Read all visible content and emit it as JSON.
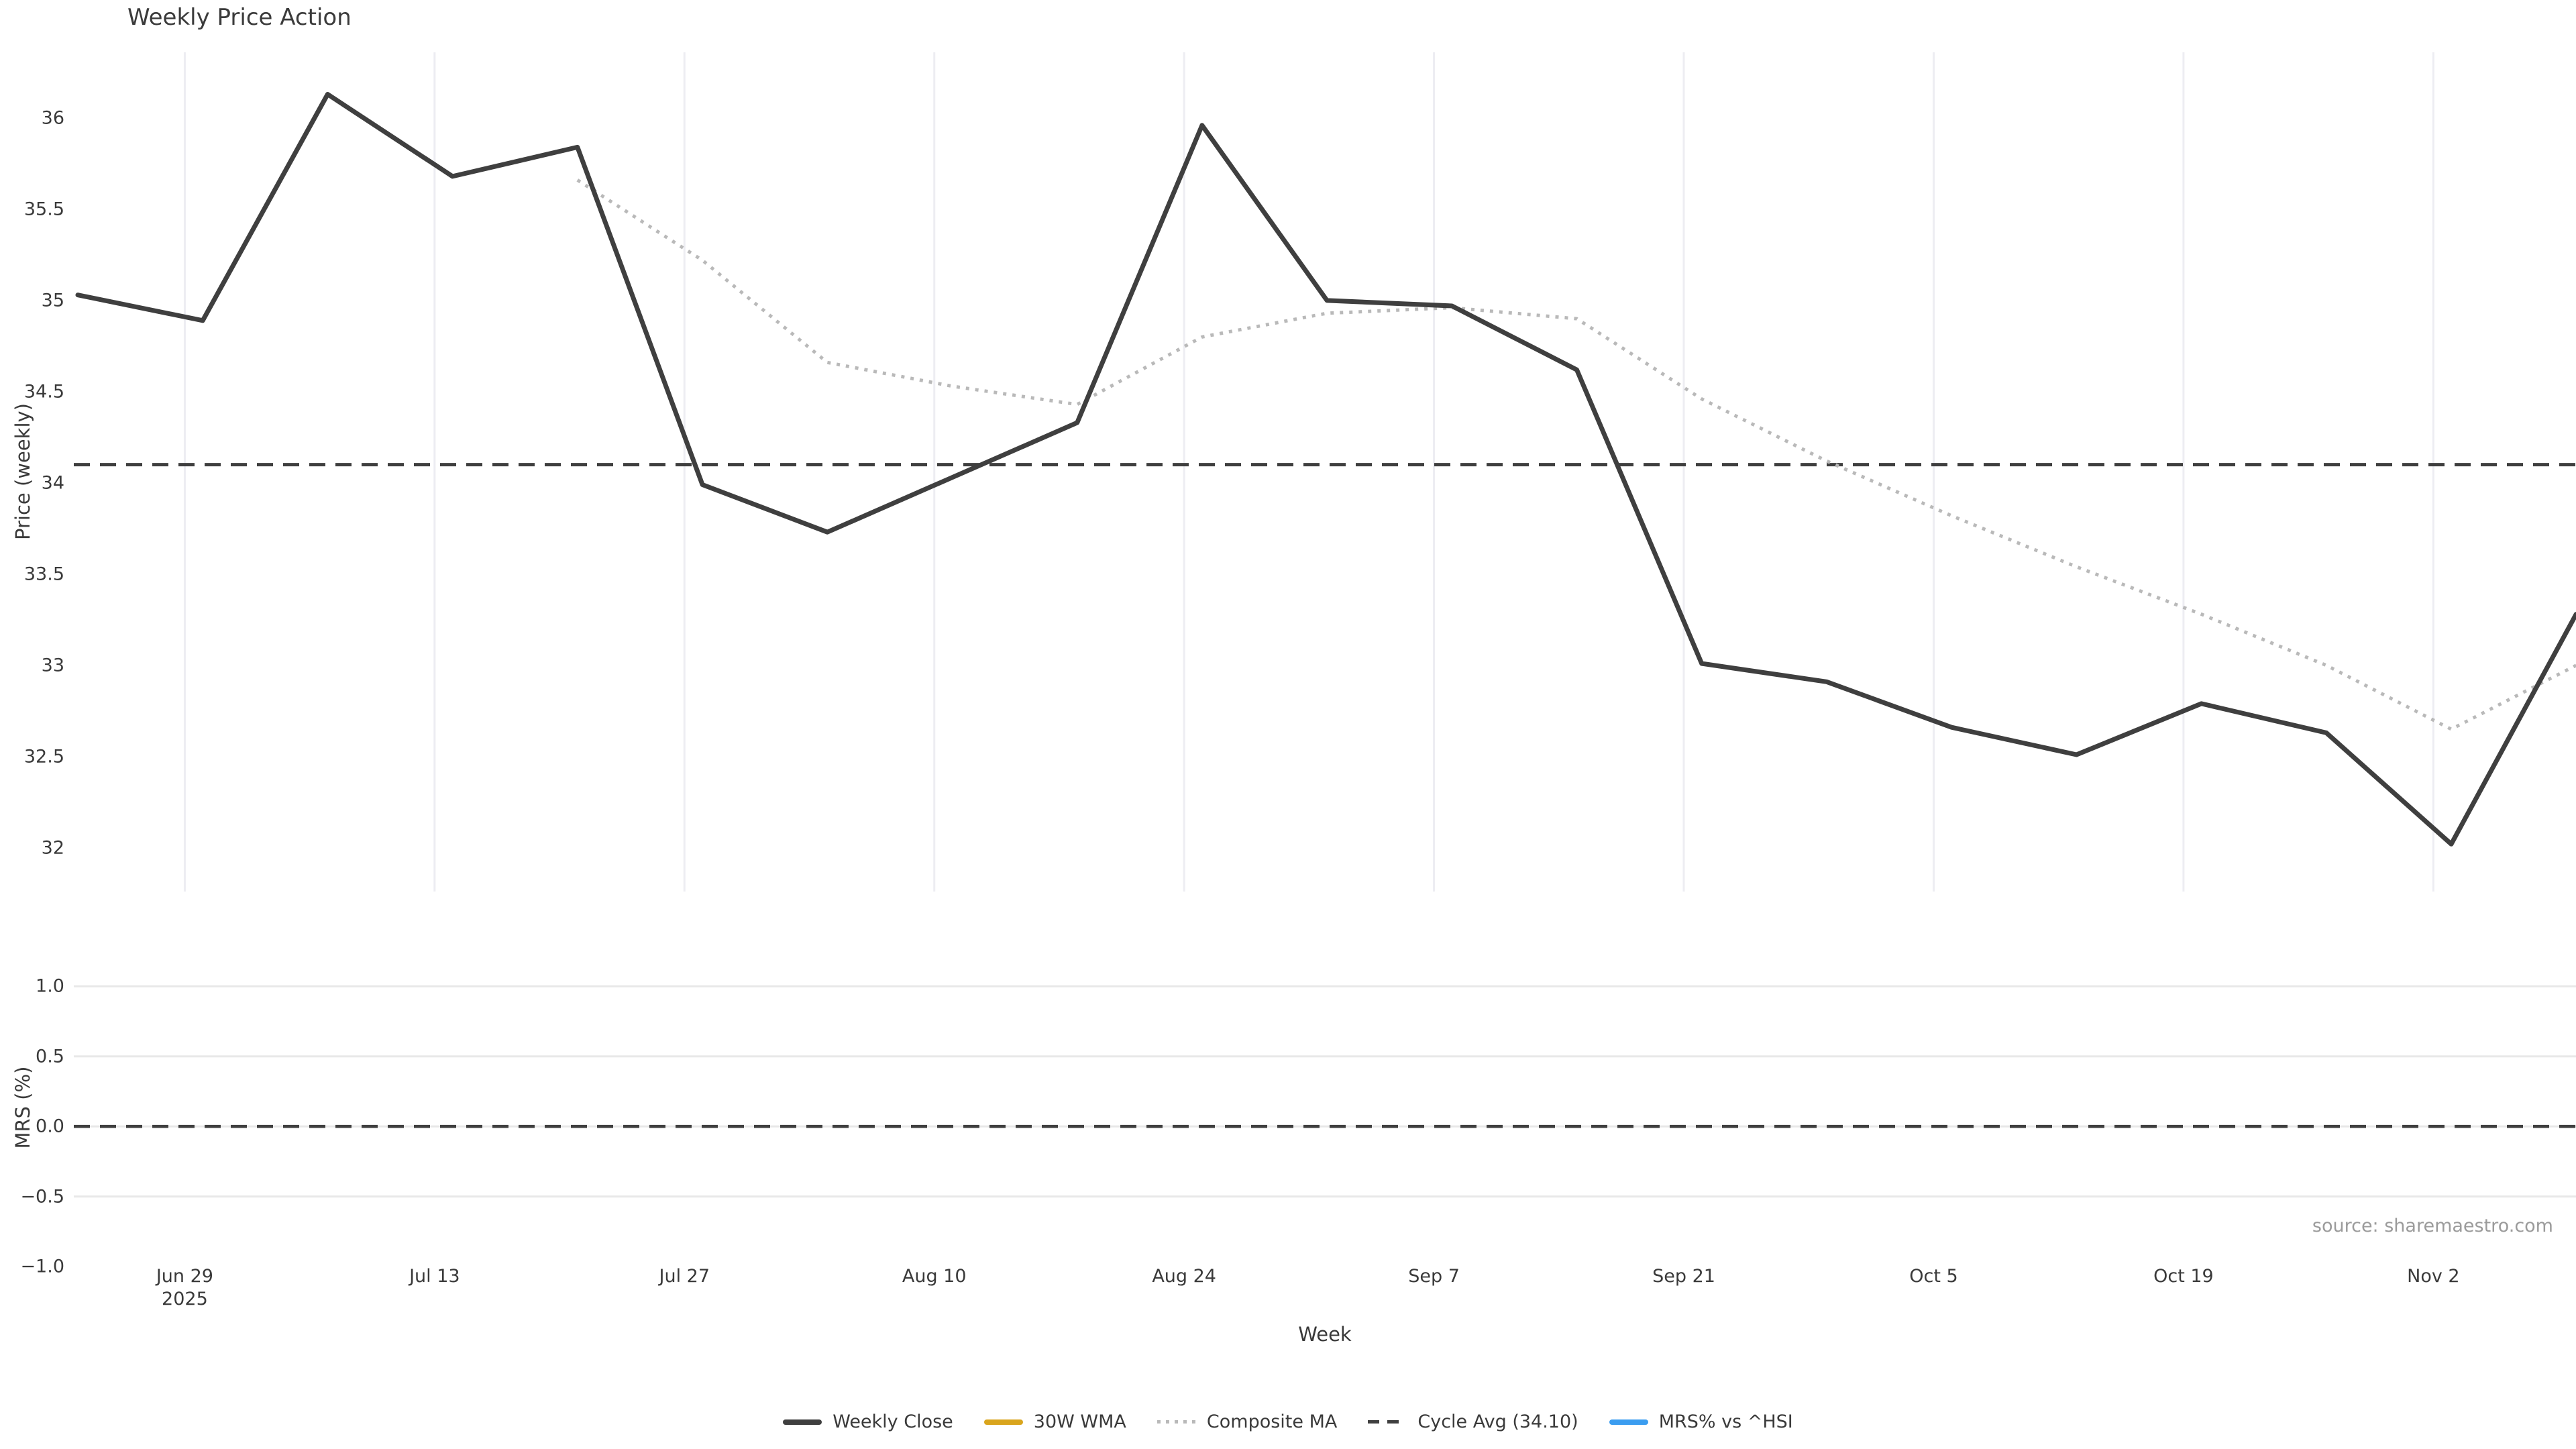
{
  "title": "Weekly Price Action",
  "source_note": "source: sharemaestro.com",
  "axes": {
    "price_label": "Price (weekly)",
    "mrs_label": "MRS (%)",
    "x_label": "Week",
    "price_ticks": [
      {
        "value": 36,
        "label": "36"
      },
      {
        "value": 35.5,
        "label": "35.5"
      },
      {
        "value": 35,
        "label": "35"
      },
      {
        "value": 34.5,
        "label": "34.5"
      },
      {
        "value": 34,
        "label": "34"
      },
      {
        "value": 33.5,
        "label": "33.5"
      },
      {
        "value": 33,
        "label": "33"
      },
      {
        "value": 32.5,
        "label": "32.5"
      },
      {
        "value": 32,
        "label": "32"
      }
    ],
    "mrs_ticks": [
      {
        "value": 1.0,
        "label": "1.0"
      },
      {
        "value": 0.5,
        "label": "0.5"
      },
      {
        "value": 0.0,
        "label": "0.0"
      },
      {
        "value": -0.5,
        "label": "−0.5"
      },
      {
        "value": -1.0,
        "label": "−1.0"
      }
    ],
    "x_ticks": [
      {
        "label": "Jun 29",
        "sub": "2025"
      },
      {
        "label": "Jul 13"
      },
      {
        "label": "Jul 27"
      },
      {
        "label": "Aug 10"
      },
      {
        "label": "Aug 24"
      },
      {
        "label": "Sep 7"
      },
      {
        "label": "Sep 21"
      },
      {
        "label": "Oct 5"
      },
      {
        "label": "Oct 19"
      },
      {
        "label": "Nov 2"
      }
    ]
  },
  "legend": {
    "items": [
      {
        "label": "Weekly Close",
        "style": "solid",
        "color": "#3f3f3f"
      },
      {
        "label": "30W WMA",
        "style": "solid",
        "color": "#d9a51d"
      },
      {
        "label": "Composite MA",
        "style": "dotted",
        "color": "#b9b9b9"
      },
      {
        "label": "Cycle Avg (34.10)",
        "style": "dashed",
        "color": "#3f3f3f"
      },
      {
        "label": "MRS% vs ^HSI",
        "style": "solid",
        "color": "#3b9df0"
      }
    ]
  },
  "colors": {
    "background": "#ffffff",
    "text": "#3a3a3a",
    "muted_text": "#9b9b9b",
    "grid_vertical": "#ededf2",
    "grid_horizontal": "#e8e8e8",
    "weekly_close": "#3f3f3f",
    "wma_30w": "#d9a51d",
    "composite_ma": "#b9b9b9",
    "cycle_avg": "#3f3f3f",
    "mrs_line": "#3b9df0"
  },
  "chart_data": {
    "type": "line",
    "title": "Weekly Price Action",
    "xlabel": "Week",
    "x": [
      "Jun 22",
      "Jun 29",
      "Jul 6",
      "Jul 13",
      "Jul 20",
      "Jul 27",
      "Aug 3",
      "Aug 10",
      "Aug 17",
      "Aug 24",
      "Aug 31",
      "Sep 7",
      "Sep 14",
      "Sep 21",
      "Sep 28",
      "Oct 5",
      "Oct 12",
      "Oct 19",
      "Oct 26",
      "Nov 2",
      "Nov 9"
    ],
    "x_tick_labels": [
      "Jun 29 2025",
      "Jul 13",
      "Jul 27",
      "Aug 10",
      "Aug 24",
      "Sep 7",
      "Sep 21",
      "Oct 5",
      "Oct 19",
      "Nov 2"
    ],
    "panels": [
      {
        "ylabel": "Price (weekly)",
        "ylim": [
          31.76,
          36.36
        ],
        "yticks": [
          32,
          32.5,
          33,
          33.5,
          34,
          34.5,
          35,
          35.5,
          36
        ],
        "grid": "vertical",
        "series": [
          {
            "name": "Weekly Close",
            "style": "solid",
            "color": "#3f3f3f",
            "values": [
              35.03,
              34.89,
              36.13,
              35.68,
              35.84,
              33.99,
              33.73,
              34.03,
              34.33,
              35.96,
              35.0,
              34.97,
              34.62,
              33.01,
              32.91,
              32.66,
              32.51,
              32.79,
              32.63,
              32.02,
              33.28
            ]
          },
          {
            "name": "30W WMA",
            "style": "solid",
            "color": "#d9a51d",
            "values": []
          },
          {
            "name": "Composite MA",
            "style": "dotted",
            "color": "#b9b9b9",
            "values": [
              null,
              null,
              null,
              null,
              35.66,
              35.22,
              34.66,
              34.53,
              34.43,
              34.8,
              34.93,
              34.96,
              34.9,
              34.46,
              34.12,
              33.82,
              33.54,
              33.28,
              33.0,
              32.65,
              33.0
            ]
          }
        ],
        "reference_lines": [
          {
            "name": "Cycle Avg",
            "value": 34.1,
            "style": "dashed",
            "color": "#3f3f3f"
          }
        ]
      },
      {
        "ylabel": "MRS (%)",
        "ylim": [
          -1.0,
          1.26
        ],
        "yticks": [
          -1.0,
          -0.5,
          0.0,
          0.5,
          1.0
        ],
        "grid": "horizontal",
        "series": [
          {
            "name": "MRS% vs ^HSI",
            "style": "solid",
            "color": "#3b9df0",
            "values": []
          }
        ],
        "reference_lines": [
          {
            "name": "Zero line",
            "value": 0.0,
            "style": "dashed",
            "color": "#3f3f3f"
          }
        ]
      }
    ],
    "legend_position": "bottom-center",
    "grid": true
  }
}
